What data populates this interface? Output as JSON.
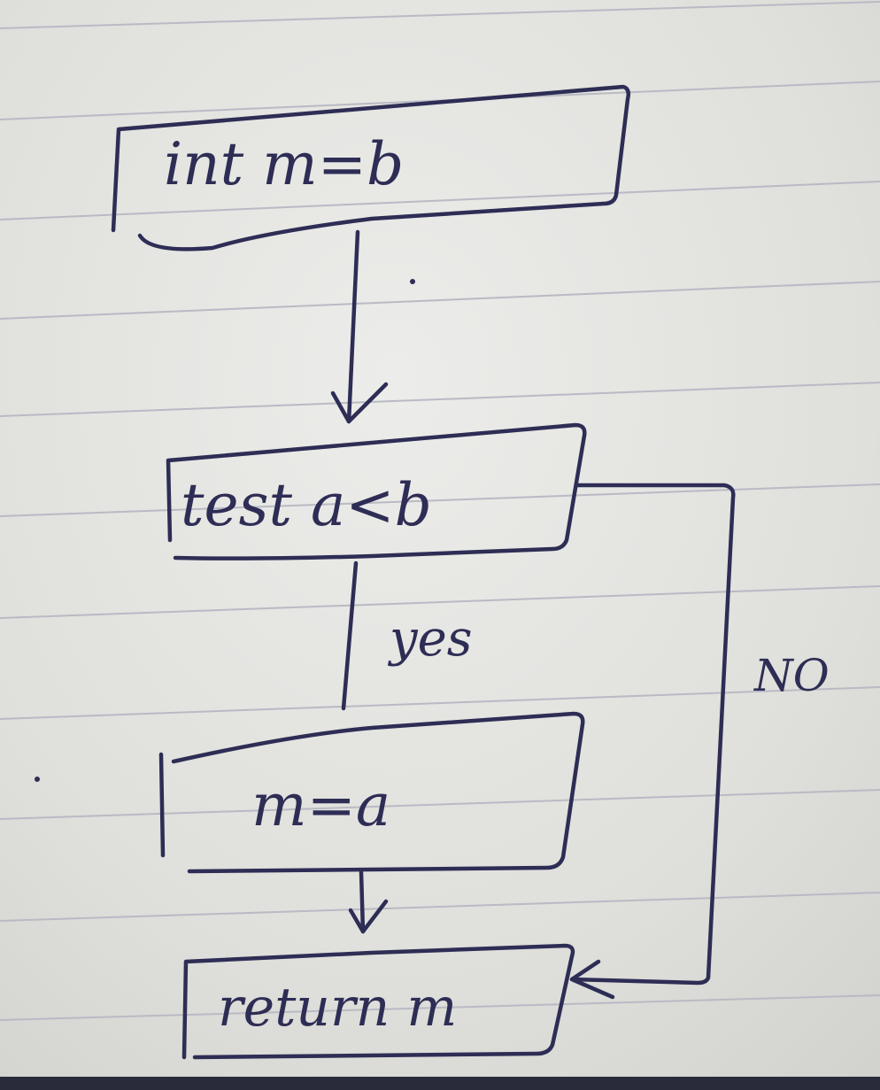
{
  "diagram": {
    "nodes": [
      {
        "id": "init",
        "label": "int m=b"
      },
      {
        "id": "test",
        "label": "test a<b"
      },
      {
        "id": "assign",
        "label": "m=a"
      },
      {
        "id": "ret",
        "label": "return m"
      }
    ],
    "edges": [
      {
        "from": "init",
        "to": "test",
        "label": ""
      },
      {
        "from": "test",
        "to": "assign",
        "label": "yes"
      },
      {
        "from": "assign",
        "to": "ret",
        "label": ""
      },
      {
        "from": "test",
        "to": "ret",
        "label": "NO"
      }
    ]
  },
  "colors": {
    "ink": "#2d2d55",
    "paper": "#e4e4df",
    "rule": "#b9bac4"
  }
}
